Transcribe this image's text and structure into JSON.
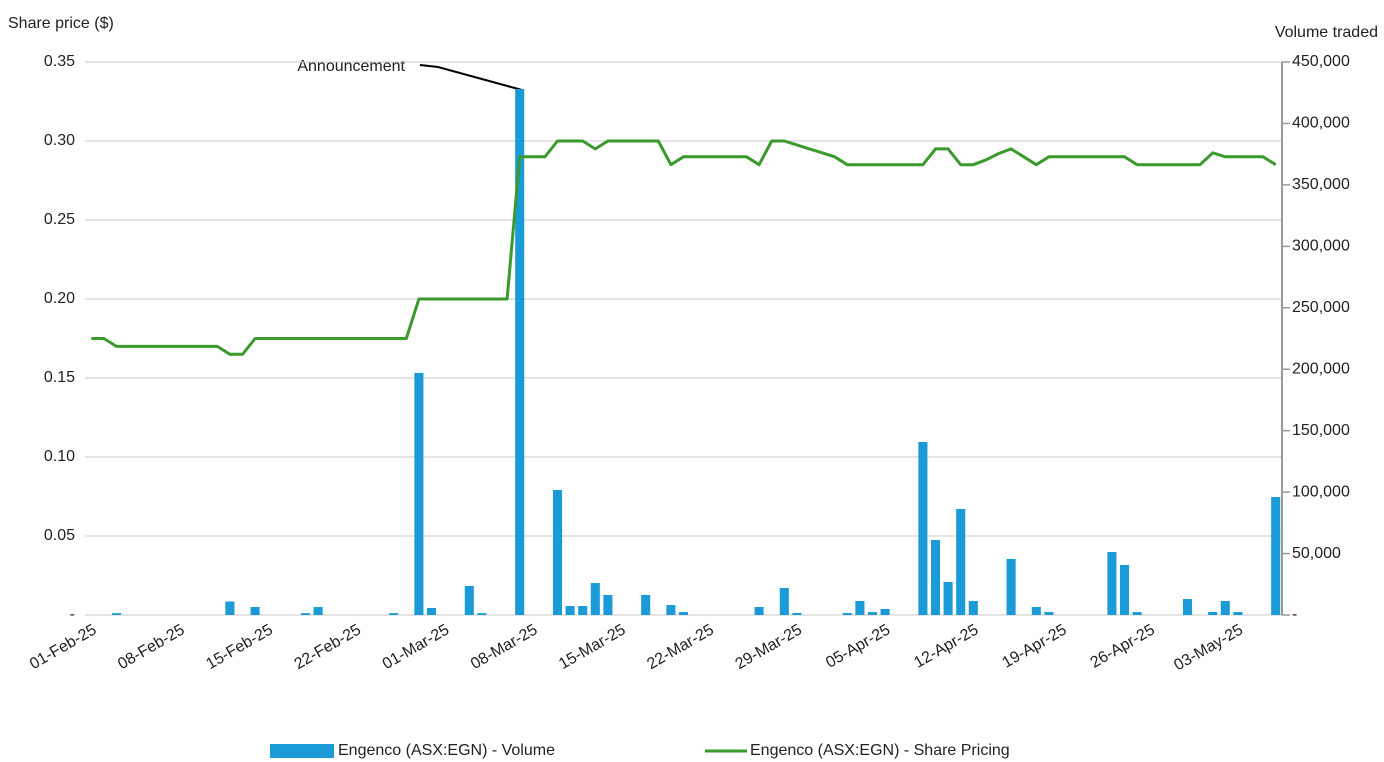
{
  "chart_data": {
    "type": "bar",
    "y_axis_label": "Share price ($)",
    "y2_axis_label": "Volume traded",
    "annotation": "Announcement",
    "categories": [
      "01-Feb-25",
      null,
      null,
      null,
      null,
      null,
      null,
      "08-Feb-25",
      null,
      null,
      null,
      null,
      null,
      null,
      "15-Feb-25",
      null,
      null,
      null,
      null,
      null,
      null,
      "22-Feb-25",
      null,
      null,
      null,
      null,
      null,
      null,
      "01-Mar-25",
      null,
      null,
      null,
      null,
      null,
      null,
      "08-Mar-25",
      null,
      null,
      null,
      null,
      null,
      null,
      "15-Mar-25",
      null,
      null,
      null,
      null,
      null,
      null,
      "22-Mar-25",
      null,
      null,
      null,
      null,
      null,
      null,
      "29-Mar-25",
      null,
      null,
      null,
      null,
      null,
      null,
      "05-Apr-25",
      null,
      null,
      null,
      null,
      null,
      null,
      "12-Apr-25",
      null,
      null,
      null,
      null,
      null,
      null,
      "19-Apr-25",
      null,
      null,
      null,
      null,
      null,
      null,
      "26-Apr-25",
      null,
      null,
      null,
      null,
      null,
      null,
      "03-May-25",
      null,
      null,
      null
    ],
    "series": [
      {
        "name": "Engenco (ASX:EGN) - Volume",
        "type": "bar",
        "axis": "y2",
        "color": "#1a9ad6",
        "values": [
          0,
          0,
          1500,
          0,
          0,
          0,
          0,
          0,
          0,
          0,
          0,
          11000,
          0,
          6500,
          0,
          0,
          0,
          1500,
          6500,
          0,
          0,
          0,
          0,
          0,
          1500,
          0,
          197000,
          5700,
          0,
          0,
          23600,
          1500,
          0,
          0,
          428000,
          0,
          0,
          101700,
          7300,
          7300,
          26000,
          16300,
          0,
          0,
          16300,
          0,
          8100,
          2400,
          0,
          0,
          0,
          0,
          0,
          6500,
          0,
          22000,
          1600,
          0,
          0,
          0,
          1600,
          11400,
          2400,
          4900,
          0,
          0,
          140800,
          61000,
          26900,
          86300,
          11400,
          0,
          0,
          45600,
          0,
          6500,
          2400,
          0,
          0,
          0,
          0,
          51300,
          40700,
          2400,
          0,
          0,
          0,
          13000,
          0,
          2400,
          11400,
          2400,
          0,
          0,
          96000
        ]
      },
      {
        "name": "Engenco (ASX:EGN) - Share Pricing",
        "type": "line",
        "axis": "y",
        "color": "#3a9a2c",
        "values": [
          0.175,
          0.175,
          0.17,
          0.17,
          0.17,
          0.17,
          0.17,
          0.17,
          0.17,
          0.17,
          0.17,
          0.165,
          0.165,
          0.175,
          0.175,
          0.175,
          0.175,
          0.175,
          0.175,
          0.175,
          0.175,
          0.175,
          0.175,
          0.175,
          0.175,
          0.175,
          0.2,
          0.2,
          0.2,
          0.2,
          0.2,
          0.2,
          0.2,
          0.2,
          0.29,
          0.29,
          0.29,
          0.3,
          0.3,
          0.3,
          0.295,
          0.3,
          0.3,
          0.3,
          0.3,
          0.3,
          0.285,
          0.29,
          0.29,
          0.29,
          0.29,
          0.29,
          0.29,
          0.285,
          0.3,
          0.3,
          0.2975,
          0.295,
          0.2925,
          0.29,
          0.285,
          0.285,
          0.285,
          0.285,
          0.285,
          0.285,
          0.285,
          0.295,
          0.295,
          0.285,
          0.285,
          0.288,
          0.292,
          0.295,
          0.29,
          0.285,
          0.29,
          0.29,
          0.29,
          0.29,
          0.29,
          0.29,
          0.29,
          0.285,
          0.285,
          0.285,
          0.285,
          0.285,
          0.285,
          0.2925,
          0.29,
          0.29,
          0.29,
          0.29,
          0.285
        ]
      }
    ],
    "ylim": [
      0,
      0.35
    ],
    "yticks": [
      {
        "value": 0,
        "label": "-"
      },
      0.05,
      {
        "value": 0.1,
        "label": "0.10"
      },
      0.15,
      {
        "value": 0.2,
        "label": "0.20"
      },
      0.25,
      {
        "value": 0.3,
        "label": "0.30"
      },
      0.35
    ],
    "y2lim": [
      0,
      450000
    ],
    "y2ticks": [
      {
        "value": 0,
        "label": "-"
      },
      {
        "value": 50000,
        "label": "50,000"
      },
      {
        "value": 100000,
        "label": "100,000"
      },
      {
        "value": 150000,
        "label": "150,000"
      },
      {
        "value": 200000,
        "label": "200,000"
      },
      {
        "value": 250000,
        "label": "250,000"
      },
      {
        "value": 300000,
        "label": "300,000"
      },
      {
        "value": 350000,
        "label": "350,000"
      },
      {
        "value": 400000,
        "label": "400,000"
      },
      {
        "value": 450000,
        "label": "450,000"
      }
    ],
    "grid": true,
    "legend": "bottom"
  }
}
